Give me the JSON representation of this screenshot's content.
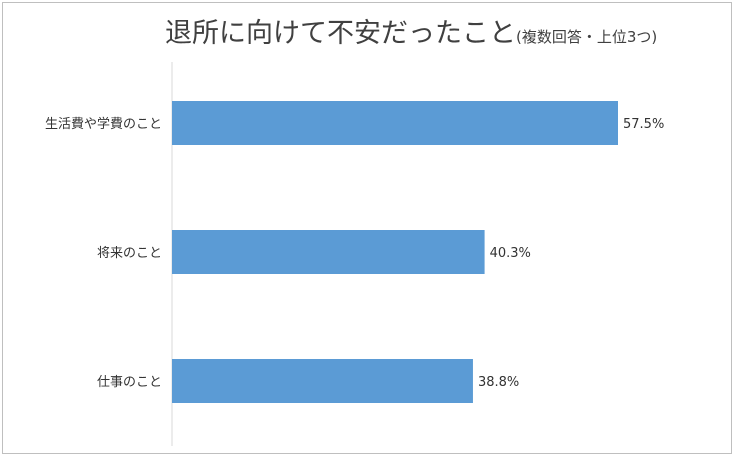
{
  "chart_data": {
    "type": "bar",
    "orientation": "horizontal",
    "title": "退所に向けて不安だったこと",
    "subtitle": "(複数回答・上位3つ)",
    "categories": [
      "生活費や学費のこと",
      "将来のこと",
      "仕事のこと"
    ],
    "values": [
      57.5,
      40.3,
      38.8
    ],
    "value_labels": [
      "57.5%",
      "40.3%",
      "38.8%"
    ],
    "unit": "%",
    "xlim": [
      0,
      60
    ],
    "grid": false,
    "legend": "none",
    "bar_color": "#5b9bd5"
  }
}
